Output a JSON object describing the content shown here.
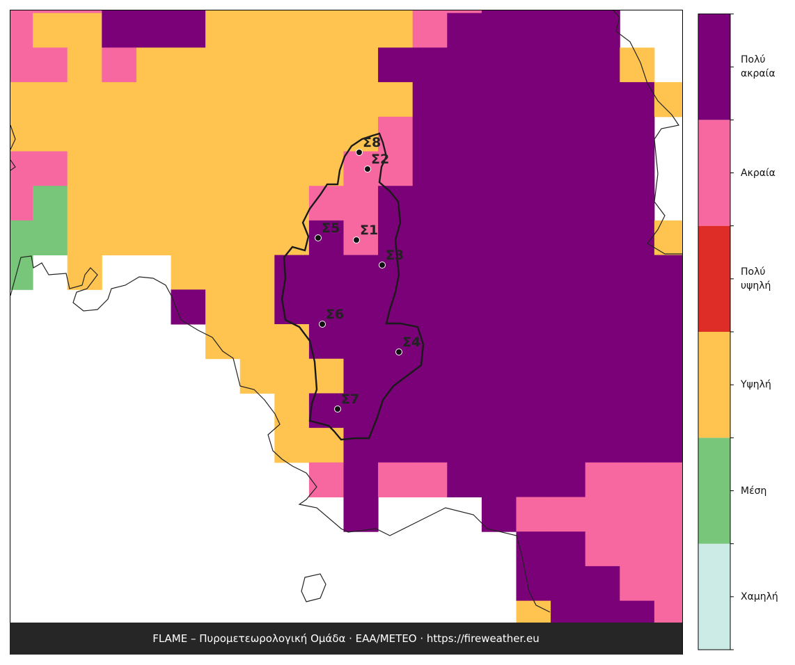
{
  "legend": [
    {
      "label": "Χαμηλή",
      "color": "#cdebe6"
    },
    {
      "label": "Μέση",
      "color": "#78c679"
    },
    {
      "label": "Υψηλή",
      "color": "#fec44f"
    },
    {
      "label": "Πολύ υψηλή",
      "color": "#de2d26"
    },
    {
      "label": "Ακραία",
      "color": "#f768a1"
    },
    {
      "label": "Πολύ ακραία",
      "color": "#7a0177"
    }
  ],
  "stations": [
    {
      "label": "Σ1",
      "x": 512,
      "y": 345
    },
    {
      "label": "Σ2",
      "x": 528,
      "y": 243
    },
    {
      "label": "Σ3",
      "x": 549,
      "y": 381
    },
    {
      "label": "Σ4",
      "x": 573,
      "y": 506
    },
    {
      "label": "Σ5",
      "x": 457,
      "y": 342
    },
    {
      "label": "Σ6",
      "x": 463,
      "y": 466
    },
    {
      "label": "Σ7",
      "x": 485,
      "y": 588
    },
    {
      "label": "Σ8",
      "x": 516,
      "y": 219
    }
  ],
  "grid": [
    [
      4,
      4,
      4,
      5,
      5,
      5,
      2,
      2,
      2,
      2,
      2,
      2,
      4,
      4,
      5,
      5,
      5,
      5,
      null,
      null
    ],
    [
      4,
      2,
      2,
      5,
      5,
      5,
      2,
      2,
      2,
      2,
      2,
      2,
      4,
      5,
      5,
      5,
      5,
      5,
      null,
      null
    ],
    [
      4,
      4,
      2,
      4,
      2,
      2,
      2,
      2,
      2,
      2,
      2,
      5,
      5,
      5,
      5,
      5,
      5,
      5,
      2,
      null
    ],
    [
      2,
      2,
      2,
      2,
      2,
      2,
      2,
      2,
      2,
      2,
      2,
      2,
      5,
      5,
      5,
      5,
      5,
      5,
      5,
      2
    ],
    [
      2,
      2,
      2,
      2,
      2,
      2,
      2,
      2,
      2,
      2,
      2,
      4,
      5,
      5,
      5,
      5,
      5,
      5,
      5,
      null
    ],
    [
      4,
      4,
      2,
      2,
      2,
      2,
      2,
      2,
      2,
      2,
      4,
      4,
      5,
      5,
      5,
      5,
      5,
      5,
      5,
      null
    ],
    [
      4,
      1,
      2,
      2,
      2,
      2,
      2,
      2,
      2,
      4,
      4,
      5,
      5,
      5,
      5,
      5,
      5,
      5,
      5,
      null
    ],
    [
      1,
      1,
      2,
      2,
      2,
      2,
      2,
      2,
      2,
      5,
      4,
      5,
      5,
      5,
      5,
      5,
      5,
      5,
      5,
      2
    ],
    [
      1,
      null,
      2,
      null,
      null,
      2,
      2,
      2,
      5,
      5,
      5,
      5,
      5,
      5,
      5,
      5,
      5,
      5,
      5,
      5
    ],
    [
      null,
      null,
      null,
      null,
      null,
      5,
      2,
      2,
      5,
      5,
      5,
      5,
      5,
      5,
      5,
      5,
      5,
      5,
      5,
      5
    ],
    [
      null,
      null,
      null,
      null,
      null,
      null,
      2,
      2,
      2,
      5,
      5,
      5,
      5,
      5,
      5,
      5,
      5,
      5,
      5,
      5
    ],
    [
      null,
      null,
      null,
      null,
      null,
      null,
      null,
      2,
      2,
      2,
      5,
      5,
      5,
      5,
      5,
      5,
      5,
      5,
      5,
      5
    ],
    [
      null,
      null,
      null,
      null,
      null,
      null,
      null,
      null,
      2,
      5,
      5,
      5,
      5,
      5,
      5,
      5,
      5,
      5,
      5,
      5
    ],
    [
      null,
      null,
      null,
      null,
      null,
      null,
      null,
      null,
      2,
      2,
      5,
      5,
      5,
      5,
      5,
      5,
      5,
      5,
      5,
      5
    ],
    [
      null,
      null,
      null,
      null,
      null,
      null,
      null,
      null,
      null,
      4,
      5,
      4,
      4,
      5,
      5,
      5,
      5,
      4,
      4,
      4
    ],
    [
      null,
      null,
      null,
      null,
      null,
      null,
      null,
      null,
      null,
      null,
      5,
      null,
      null,
      null,
      5,
      4,
      4,
      4,
      4,
      4
    ],
    [
      null,
      null,
      null,
      null,
      null,
      null,
      null,
      null,
      null,
      null,
      null,
      null,
      null,
      null,
      null,
      5,
      5,
      4,
      4,
      4
    ],
    [
      null,
      null,
      null,
      null,
      null,
      null,
      null,
      null,
      null,
      null,
      null,
      null,
      null,
      null,
      null,
      5,
      5,
      5,
      4,
      4
    ],
    [
      null,
      null,
      null,
      null,
      null,
      null,
      null,
      null,
      null,
      null,
      null,
      null,
      null,
      null,
      null,
      2,
      5,
      5,
      5,
      4
    ]
  ],
  "footer": "FLAME – Πυρομετεωρολογική Ομάδα · ΕΑΑ/METEO · https://fireweather.eu"
}
